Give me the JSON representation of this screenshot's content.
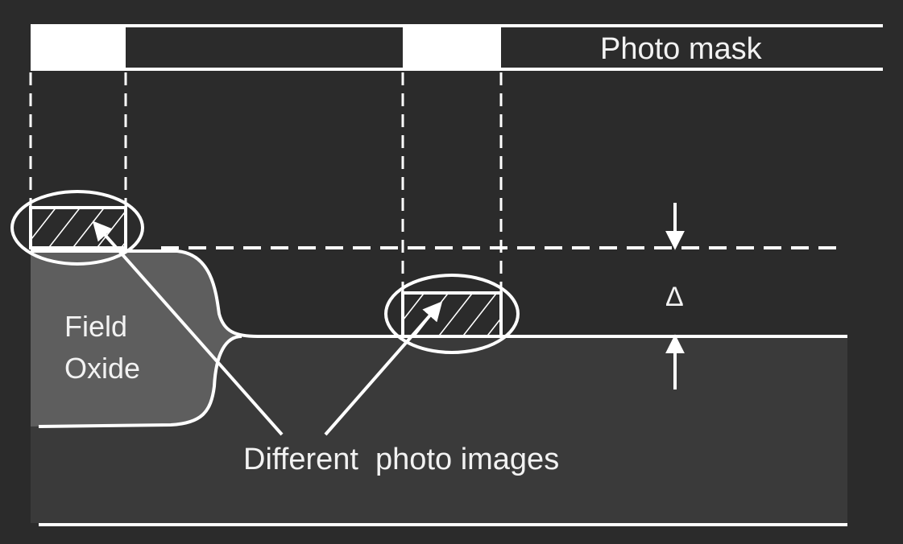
{
  "diagram": {
    "mask_label": "Photo mask",
    "oxide_label_line1": "Field",
    "oxide_label_line2": "Oxide",
    "delta_symbol": "Δ",
    "images_label": "Different  photo images"
  },
  "colors": {
    "background": "#2b2b2b",
    "substrate": "#3a3a3a",
    "field_oxide": "#5e5e5e",
    "lines": "#ffffff",
    "text": "#f2f2f2"
  }
}
